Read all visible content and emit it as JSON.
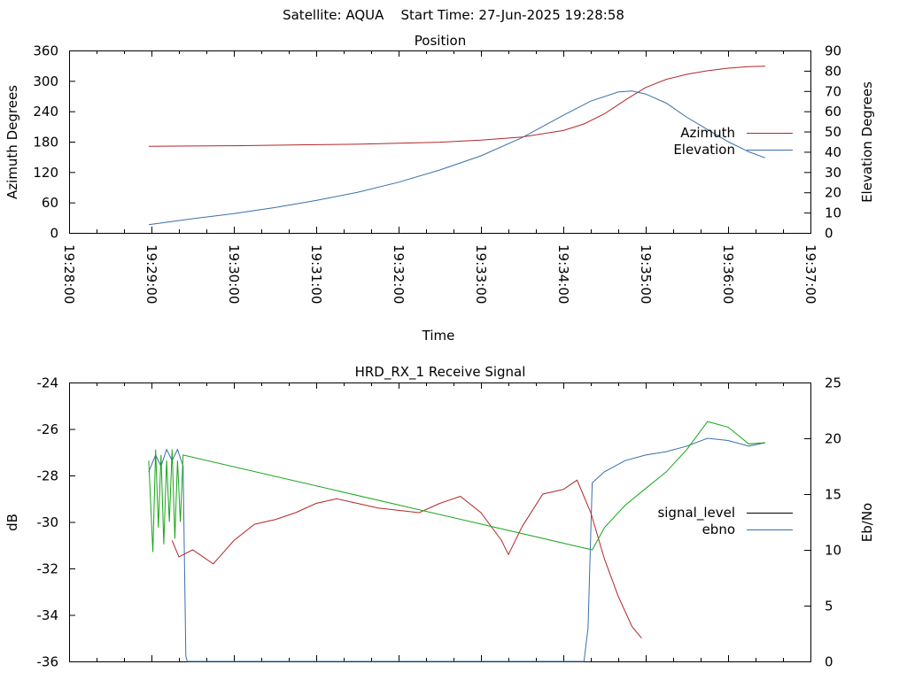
{
  "page_title": "Satellite: AQUA    Start Time: 27-Jun-2025 19:28:58",
  "chart_data": [
    {
      "type": "line",
      "title": "Position",
      "xlabel": "Time",
      "ylabel": "Azimuth Degrees",
      "y2label": "Elevation Degrees",
      "xlim": [
        "19:28:00",
        "19:37:00"
      ],
      "ylim": [
        0,
        360
      ],
      "y2lim": [
        0,
        90
      ],
      "x_ticks": [
        "19:28:00",
        "19:29:00",
        "19:30:00",
        "19:31:00",
        "19:32:00",
        "19:33:00",
        "19:34:00",
        "19:35:00",
        "19:36:00",
        "19:37:00"
      ],
      "y_ticks": [
        "0",
        "60",
        "120",
        "180",
        "240",
        "300",
        "360"
      ],
      "y2_ticks": [
        "0",
        "10",
        "20",
        "30",
        "40",
        "50",
        "60",
        "70",
        "80",
        "90"
      ],
      "legend_position": "right",
      "grid": false,
      "series": [
        {
          "name": "Azimuth",
          "axis": "y",
          "color": "#b2272b",
          "points": [
            [
              "19:28:58",
              171
            ],
            [
              "19:29:30",
              171.5
            ],
            [
              "19:30:00",
              172
            ],
            [
              "19:30:30",
              173
            ],
            [
              "19:31:00",
              174
            ],
            [
              "19:31:30",
              175
            ],
            [
              "19:32:00",
              177
            ],
            [
              "19:32:30",
              179
            ],
            [
              "19:33:00",
              183
            ],
            [
              "19:33:30",
              189
            ],
            [
              "19:34:00",
              202
            ],
            [
              "19:34:15",
              215
            ],
            [
              "19:34:30",
              235
            ],
            [
              "19:34:45",
              262
            ],
            [
              "19:35:00",
              287
            ],
            [
              "19:35:15",
              303
            ],
            [
              "19:35:30",
              313
            ],
            [
              "19:35:45",
              320
            ],
            [
              "19:36:00",
              325
            ],
            [
              "19:36:15",
              328
            ],
            [
              "19:36:27",
              329
            ]
          ]
        },
        {
          "name": "Elevation",
          "axis": "y2",
          "color": "#3b6faa",
          "points": [
            [
              "19:28:58",
              4
            ],
            [
              "19:29:30",
              7
            ],
            [
              "19:30:00",
              9.5
            ],
            [
              "19:30:30",
              12.5
            ],
            [
              "19:31:00",
              16
            ],
            [
              "19:31:30",
              20
            ],
            [
              "19:32:00",
              25
            ],
            [
              "19:32:30",
              31
            ],
            [
              "19:33:00",
              38
            ],
            [
              "19:33:30",
              47
            ],
            [
              "19:34:00",
              58
            ],
            [
              "19:34:20",
              65
            ],
            [
              "19:34:40",
              69.5
            ],
            [
              "19:34:50",
              70
            ],
            [
              "19:35:00",
              68.5
            ],
            [
              "19:35:15",
              64
            ],
            [
              "19:35:30",
              57
            ],
            [
              "19:35:45",
              51
            ],
            [
              "19:36:00",
              45
            ],
            [
              "19:36:15",
              40
            ],
            [
              "19:36:27",
              37
            ]
          ]
        }
      ]
    },
    {
      "type": "line",
      "title": "HRD_RX_1 Receive Signal",
      "xlabel": "",
      "ylabel": "dB",
      "y2label": "Eb/No",
      "xlim": [
        "19:28:00",
        "19:37:00"
      ],
      "ylim": [
        -36,
        -24
      ],
      "y2lim": [
        0,
        25
      ],
      "y_ticks": [
        "-24",
        "-26",
        "-28",
        "-30",
        "-32",
        "-34",
        "-36"
      ],
      "y2_ticks": [
        "0",
        "5",
        "10",
        "15",
        "20",
        "25"
      ],
      "legend_position": "right",
      "grid": false,
      "series": [
        {
          "name": "signal_level",
          "axis": "y",
          "color": "#000000",
          "points": []
        },
        {
          "name": "ebno",
          "axis": "y2",
          "color": "#3b6faa",
          "points": [
            [
              "19:28:58",
              17
            ],
            [
              "19:29:03",
              18.5
            ],
            [
              "19:29:07",
              17.5
            ],
            [
              "19:29:11",
              19
            ],
            [
              "19:29:15",
              18
            ],
            [
              "19:29:19",
              19
            ],
            [
              "19:29:23",
              17.5
            ],
            [
              "19:29:25",
              0.5
            ],
            [
              "19:29:26",
              0
            ],
            [
              "19:34:15",
              0
            ],
            [
              "19:34:18",
              3
            ],
            [
              "19:34:21",
              16
            ],
            [
              "19:34:30",
              17
            ],
            [
              "19:34:45",
              18
            ],
            [
              "19:35:00",
              18.5
            ],
            [
              "19:35:15",
              18.8
            ],
            [
              "19:35:30",
              19.3
            ],
            [
              "19:35:45",
              20
            ],
            [
              "19:36:00",
              19.8
            ],
            [
              "19:36:15",
              19.3
            ],
            [
              "19:36:27",
              19.6
            ]
          ]
        },
        {
          "name": "",
          "axis": "y",
          "color": "#b2272b",
          "points": [
            [
              "19:29:15",
              -30.8
            ],
            [
              "19:29:20",
              -31.5
            ],
            [
              "19:29:30",
              -31.2
            ],
            [
              "19:29:45",
              -31.8
            ],
            [
              "19:30:00",
              -30.8
            ],
            [
              "19:30:15",
              -30.1
            ],
            [
              "19:30:30",
              -29.9
            ],
            [
              "19:30:45",
              -29.6
            ],
            [
              "19:31:00",
              -29.2
            ],
            [
              "19:31:15",
              -29.0
            ],
            [
              "19:31:30",
              -29.2
            ],
            [
              "19:31:45",
              -29.4
            ],
            [
              "19:32:00",
              -29.5
            ],
            [
              "19:32:15",
              -29.6
            ],
            [
              "19:32:30",
              -29.2
            ],
            [
              "19:32:45",
              -28.9
            ],
            [
              "19:33:00",
              -29.6
            ],
            [
              "19:33:15",
              -30.8
            ],
            [
              "19:33:20",
              -31.4
            ],
            [
              "19:33:30",
              -30.2
            ],
            [
              "19:33:45",
              -28.8
            ],
            [
              "19:34:00",
              -28.6
            ],
            [
              "19:34:10",
              -28.2
            ],
            [
              "19:34:20",
              -29.6
            ],
            [
              "19:34:30",
              -31.6
            ],
            [
              "19:34:40",
              -33.2
            ],
            [
              "19:34:50",
              -34.5
            ],
            [
              "19:34:57",
              -35.0
            ]
          ]
        },
        {
          "name": "",
          "axis": "y2",
          "color": "#1aa51a",
          "points": [
            [
              "19:28:58",
              18
            ],
            [
              "19:29:01",
              9.8
            ],
            [
              "19:29:03",
              19
            ],
            [
              "19:29:05",
              12
            ],
            [
              "19:29:07",
              18.5
            ],
            [
              "19:29:09",
              10.5
            ],
            [
              "19:29:11",
              18
            ],
            [
              "19:29:13",
              12.5
            ],
            [
              "19:29:15",
              19
            ],
            [
              "19:29:17",
              11
            ],
            [
              "19:29:19",
              18
            ],
            [
              "19:29:21",
              12.5
            ],
            [
              "19:29:23",
              18.5
            ],
            [
              "19:34:21",
              10
            ],
            [
              "19:34:30",
              12
            ],
            [
              "19:34:45",
              14
            ],
            [
              "19:35:00",
              15.5
            ],
            [
              "19:35:15",
              17
            ],
            [
              "19:35:30",
              19
            ],
            [
              "19:35:45",
              21.5
            ],
            [
              "19:36:00",
              21
            ],
            [
              "19:36:15",
              19.5
            ],
            [
              "19:36:27",
              19.6
            ]
          ]
        }
      ]
    }
  ]
}
